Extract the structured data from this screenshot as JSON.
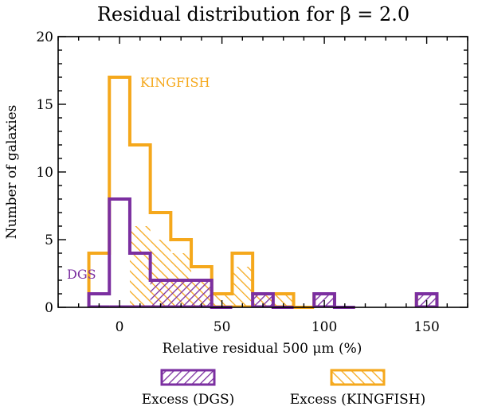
{
  "chart_data": {
    "type": "bar",
    "title": "Residual distribution for β = 2.0",
    "xlabel": "Relative residual 500 μm (%)",
    "ylabel": "Number of galaxies",
    "xlim": [
      -30,
      170
    ],
    "ylim": [
      0,
      20
    ],
    "x_ticks": [
      0,
      50,
      100,
      150
    ],
    "y_ticks": [
      0,
      5,
      10,
      15,
      20
    ],
    "bin_width": 10,
    "bin_left_edges": [
      -15,
      -5,
      5,
      15,
      25,
      35,
      45,
      55,
      65,
      75,
      85,
      95,
      105,
      115,
      125,
      135,
      145
    ],
    "series": [
      {
        "name": "KINGFISH",
        "label": "KINGFISH",
        "color": "#f5a81c",
        "values": [
          4,
          17,
          12,
          7,
          5,
          3,
          1,
          4,
          1,
          1,
          0,
          1,
          0,
          0,
          0,
          0,
          1
        ]
      },
      {
        "name": "DGS",
        "label": "DGS",
        "color": "#7b2fa0",
        "values": [
          1,
          8,
          4,
          2,
          2,
          2,
          0,
          0,
          1,
          0,
          0,
          1,
          0,
          0,
          0,
          0,
          1
        ]
      }
    ],
    "excess_series": [
      {
        "name": "Excess (KINGFISH)",
        "color": "#f5a81c",
        "hatch": "backslash",
        "values": [
          0,
          0,
          6,
          5,
          4,
          2,
          1,
          3,
          1,
          1,
          0,
          0,
          0,
          0,
          0,
          0,
          0
        ]
      },
      {
        "name": "Excess (DGS)",
        "color": "#7b2fa0",
        "hatch": "slash",
        "values": [
          0,
          0,
          0,
          2,
          2,
          2,
          0,
          0,
          1,
          0,
          0,
          1,
          0,
          0,
          0,
          0,
          1
        ]
      }
    ],
    "legend": {
      "placement": "bottom",
      "items": [
        "Excess (DGS)",
        "Excess (KINGFISH)"
      ]
    },
    "grid": false
  }
}
